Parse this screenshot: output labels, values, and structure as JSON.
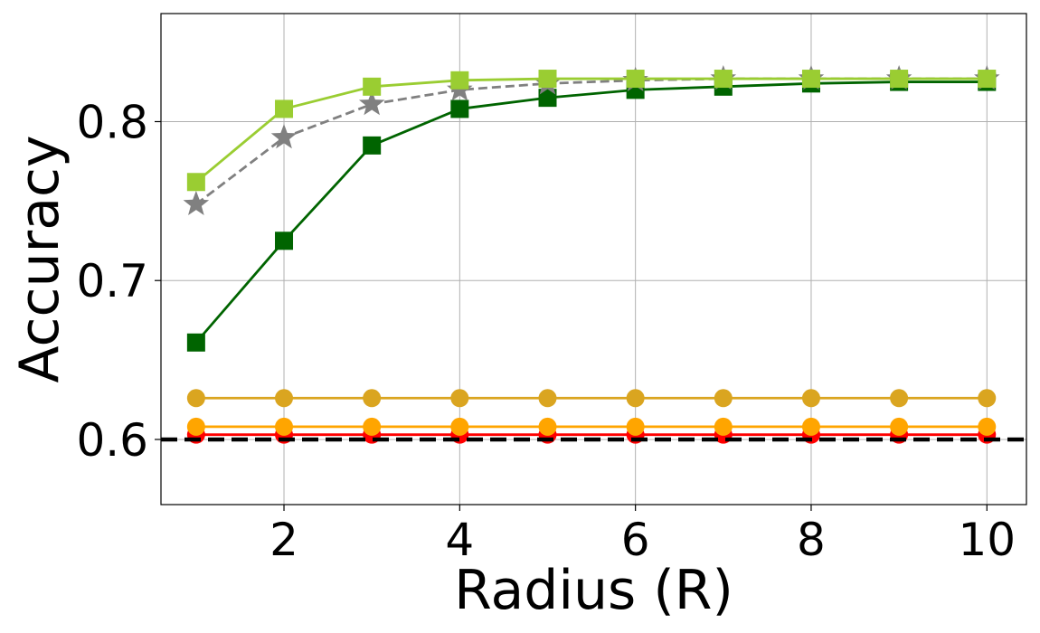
{
  "chart_data": {
    "type": "line",
    "xlabel": "Radius (R)",
    "ylabel": "Accuracy",
    "xlim": [
      0.6,
      10.45
    ],
    "ylim": [
      0.559,
      0.868
    ],
    "xticks": [
      2,
      4,
      6,
      8,
      10
    ],
    "xtick_labels": [
      "2",
      "4",
      "6",
      "8",
      "10"
    ],
    "yticks": [
      0.6,
      0.7,
      0.8
    ],
    "ytick_labels": [
      "0.6",
      "0.7",
      "0.8"
    ],
    "grid": true,
    "x": [
      1,
      2,
      3,
      4,
      5,
      6,
      7,
      8,
      9,
      10
    ],
    "series": [
      {
        "color": "#9acd32",
        "marker": "square",
        "linestyle": "solid",
        "values": [
          0.762,
          0.808,
          0.822,
          0.826,
          0.827,
          0.827,
          0.827,
          0.827,
          0.827,
          0.827
        ]
      },
      {
        "color": "#808080",
        "marker": "star",
        "linestyle": "dashed",
        "values": [
          0.748,
          0.79,
          0.811,
          0.82,
          0.824,
          0.826,
          0.827,
          0.827,
          0.827,
          0.827
        ]
      },
      {
        "color": "#006400",
        "marker": "square",
        "linestyle": "solid",
        "values": [
          0.661,
          0.725,
          0.785,
          0.808,
          0.815,
          0.82,
          0.822,
          0.824,
          0.825,
          0.825
        ]
      },
      {
        "color": "#daa520",
        "marker": "circle",
        "linestyle": "solid",
        "values": [
          0.626,
          0.626,
          0.626,
          0.626,
          0.626,
          0.626,
          0.626,
          0.626,
          0.626,
          0.626
        ]
      },
      {
        "color": "#ffa500",
        "marker": "circle",
        "linestyle": "solid",
        "values": [
          0.608,
          0.608,
          0.608,
          0.608,
          0.608,
          0.608,
          0.608,
          0.608,
          0.608,
          0.608
        ]
      },
      {
        "color": "#ff0000",
        "marker": "circle",
        "linestyle": "solid",
        "values": [
          0.603,
          0.603,
          0.603,
          0.603,
          0.603,
          0.603,
          0.603,
          0.603,
          0.603,
          0.603
        ]
      }
    ],
    "reference_line": {
      "y": 0.6,
      "color": "#000000",
      "linestyle": "dashed"
    }
  }
}
